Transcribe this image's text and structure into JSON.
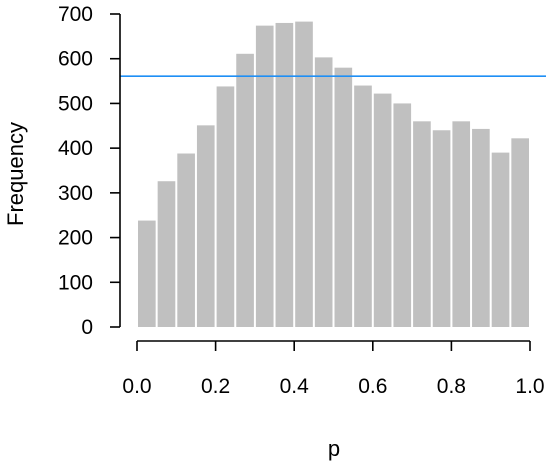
{
  "chart_data": {
    "type": "bar",
    "xlabel": "p",
    "ylabel": "Frequency",
    "xlim": [
      0.0,
      1.0
    ],
    "ylim": [
      0,
      700
    ],
    "bin_width": 0.05,
    "bin_starts": [
      0.0,
      0.05,
      0.1,
      0.15,
      0.2,
      0.25,
      0.3,
      0.35,
      0.4,
      0.45,
      0.5,
      0.55,
      0.6,
      0.65,
      0.7,
      0.75,
      0.8,
      0.85,
      0.9,
      0.95
    ],
    "values": [
      238,
      326,
      388,
      451,
      538,
      611,
      674,
      680,
      683,
      603,
      580,
      540,
      522,
      500,
      460,
      440,
      460,
      443,
      390,
      422
    ],
    "xticks": [
      "0.0",
      "0.2",
      "0.4",
      "0.6",
      "0.8",
      "1.0"
    ],
    "yticks": [
      "0",
      "100",
      "200",
      "300",
      "400",
      "500",
      "600",
      "700"
    ],
    "reference_line": {
      "y": 561,
      "color": "#1f8ff5"
    },
    "bar_color": "#c0c0c0",
    "grid": false
  }
}
